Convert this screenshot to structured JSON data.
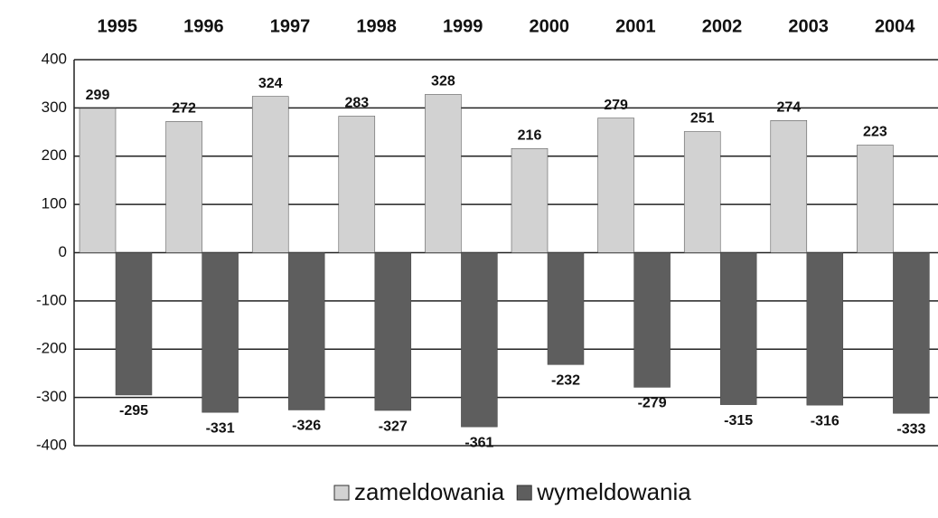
{
  "chart_data": {
    "type": "bar",
    "categories": [
      "1995",
      "1996",
      "1997",
      "1998",
      "1999",
      "2000",
      "2001",
      "2002",
      "2003",
      "2004"
    ],
    "series": [
      {
        "name": "zameldowania",
        "color": "#d2d2d2",
        "values": [
          299,
          272,
          324,
          283,
          328,
          216,
          279,
          251,
          274,
          223
        ]
      },
      {
        "name": "wymeldowania",
        "color": "#5e5e5e",
        "values": [
          -295,
          -331,
          -326,
          -327,
          -361,
          -232,
          -279,
          -315,
          -316,
          -333
        ]
      }
    ],
    "ylim": [
      -400,
      400
    ],
    "yticks": [
      -400,
      -300,
      -200,
      -100,
      0,
      100,
      200,
      300,
      400
    ],
    "grid": true,
    "legend": "bottom"
  }
}
